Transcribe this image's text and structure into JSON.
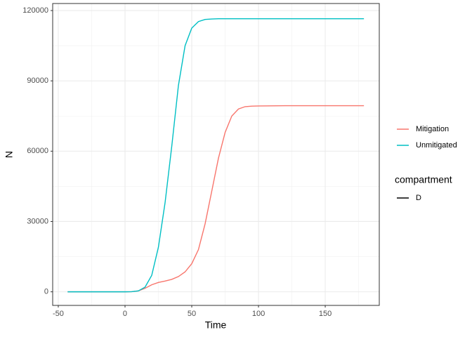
{
  "chart_data": {
    "type": "line",
    "x_label": "Time",
    "y_label": "N",
    "x": [
      -43,
      -30,
      -20,
      -10,
      0,
      5,
      10,
      15,
      20,
      25,
      30,
      35,
      40,
      45,
      50,
      55,
      60,
      65,
      70,
      75,
      80,
      85,
      90,
      95,
      100,
      120,
      140,
      160,
      179
    ],
    "series": [
      {
        "name": "Mitigation",
        "color": "#f8766d",
        "values": [
          0,
          0,
          0,
          0,
          0,
          50,
          400,
          1500,
          3000,
          4000,
          4600,
          5300,
          6500,
          8500,
          12000,
          18000,
          29000,
          43000,
          57000,
          68000,
          75000,
          78000,
          79000,
          79200,
          79300,
          79400,
          79400,
          79400,
          79400
        ]
      },
      {
        "name": "Unmitigated",
        "color": "#00bfc4",
        "values": [
          0,
          0,
          0,
          0,
          0,
          50,
          400,
          2000,
          7000,
          19000,
          38000,
          62000,
          88000,
          105000,
          112500,
          115300,
          116200,
          116400,
          116500,
          116500,
          116500,
          116500,
          116500,
          116500,
          116500,
          116500,
          116500,
          116500,
          116500
        ]
      }
    ],
    "xlim": [
      -54.2,
      190.5
    ],
    "ylim": [
      -5800,
      123000
    ],
    "xticks": [
      -50,
      0,
      50,
      100,
      150
    ],
    "yticks": [
      0,
      30000,
      60000,
      90000,
      120000
    ],
    "x_minor_ticks": [
      -25,
      25,
      75,
      125,
      175
    ],
    "y_minor_ticks": [
      15000,
      45000,
      75000,
      105000
    ],
    "grid": true,
    "legend_title": "compartment",
    "linetype_legend": [
      "D"
    ],
    "legend_position": "right"
  }
}
